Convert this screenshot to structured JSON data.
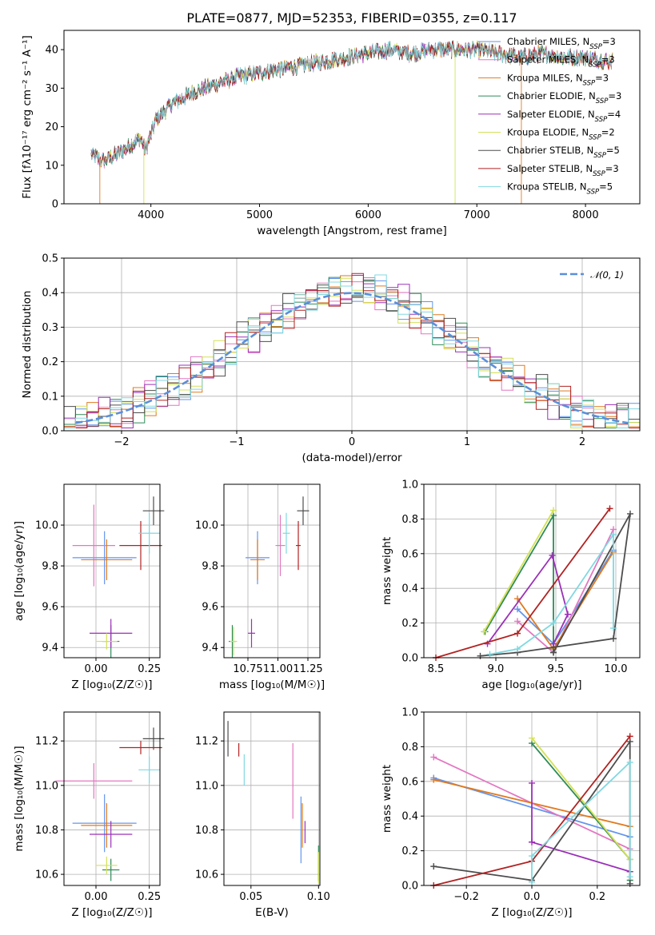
{
  "figure": {
    "title": "PLATE=0877, MJD=52353, FIBERID=0355, z=0.117"
  },
  "chart_data": [
    {
      "id": "spectrum",
      "type": "line",
      "xlabel": "wavelength [Angstrom, rest frame]",
      "ylabel": "Flux [fλ10⁻¹⁷ erg cm⁻² s⁻¹ A⁻¹]",
      "xlim": [
        3200,
        8500
      ],
      "ylim": [
        0,
        45
      ],
      "xticks": [
        4000,
        5000,
        6000,
        7000,
        8000
      ],
      "yticks": [
        0,
        10,
        20,
        30,
        40
      ],
      "grid": false,
      "legend": "top-right",
      "continuum_x": [
        3450,
        3550,
        3700,
        3800,
        3900,
        3950,
        4050,
        4200,
        4400,
        4600,
        4800,
        5000,
        5200,
        5400,
        5600,
        5800,
        6000,
        6200,
        6400,
        6600,
        6800,
        7000,
        7200,
        7400,
        7600,
        7800,
        8000,
        8200,
        8250
      ],
      "continuum_y": [
        13,
        11,
        13,
        15,
        17,
        14,
        22,
        26,
        29,
        31,
        33,
        34,
        35,
        36,
        37,
        38,
        39,
        40,
        39,
        40,
        40,
        40,
        39,
        38,
        39,
        38,
        38,
        37,
        37
      ],
      "series": [
        {
          "name": "Chabrier MILES, N_SSP=3",
          "color": "#6495ed"
        },
        {
          "name": "Salpeter MILES, N_SSP=3",
          "color": "#e377c2"
        },
        {
          "name": "Kroupa MILES, N_SSP=3",
          "color": "#e07a1f"
        },
        {
          "name": "Chabrier ELODIE, N_SSP=3",
          "color": "#2e8b57"
        },
        {
          "name": "Salpeter ELODIE, N_SSP=4",
          "color": "#9b30b8"
        },
        {
          "name": "Kroupa ELODIE, N_SSP=2",
          "color": "#d4e157"
        },
        {
          "name": "Chabrier STELIB, N_SSP=5",
          "color": "#4d4d4d"
        },
        {
          "name": "Salpeter STELIB, N_SSP=3",
          "color": "#b22222"
        },
        {
          "name": "Kroupa STELIB, N_SSP=5",
          "color": "#80d8e0"
        }
      ],
      "legend_labels": [
        {
          "base": "Chabrier MILES, N",
          "sub": "SSP",
          "tail": "=3"
        },
        {
          "base": "Salpeter MILES, N",
          "sub": "SSP",
          "tail": "=3"
        },
        {
          "base": "Kroupa MILES, N",
          "sub": "SSP",
          "tail": "=3"
        },
        {
          "base": "Chabrier ELODIE, N",
          "sub": "SSP",
          "tail": "=3"
        },
        {
          "base": "Salpeter ELODIE, N",
          "sub": "SSP",
          "tail": "=4"
        },
        {
          "base": "Kroupa ELODIE, N",
          "sub": "SSP",
          "tail": "=2"
        },
        {
          "base": "Chabrier STELIB, N",
          "sub": "SSP",
          "tail": "=5"
        },
        {
          "base": "Salpeter STELIB, N",
          "sub": "SSP",
          "tail": "=3"
        },
        {
          "base": "Kroupa STELIB, N",
          "sub": "SSP",
          "tail": "=5"
        }
      ]
    },
    {
      "id": "residuals",
      "type": "line",
      "xlabel": "(data-model)/error",
      "ylabel": "Normed distribution",
      "xlim": [
        -2.5,
        2.5
      ],
      "ylim": [
        0,
        0.5
      ],
      "xticks": [
        -2,
        -1,
        0,
        1,
        2
      ],
      "xticklabels": [
        "−2",
        "−1",
        "0",
        "1",
        "2"
      ],
      "yticks": [
        0,
        0.1,
        0.2,
        0.3,
        0.4,
        0.5
      ],
      "yticklabels": [
        "0.0",
        "0.1",
        "0.2",
        "0.3",
        "0.4",
        "0.5"
      ],
      "grid": true,
      "legend": "top-right",
      "legend_label": "𝒩(0, 1)",
      "gaussian_color": "#5b8fd9",
      "bin_width": 0.1,
      "bin_start": -2.5,
      "histogram_colors": [
        "#6495ed",
        "#e377c2",
        "#e07a1f",
        "#2e8b57",
        "#9b30b8",
        "#d4e157",
        "#4d4d4d",
        "#b22222",
        "#80d8e0"
      ]
    },
    {
      "id": "age-vs-metallicity",
      "type": "scatter",
      "xlabel": "Z [log₁₀(Z/Z☉)]",
      "ylabel": "age  [log₁₀(age/yr)]",
      "xlim": [
        -0.15,
        0.3
      ],
      "ylim": [
        9.35,
        10.2
      ],
      "xticks": [
        0.0,
        0.25
      ],
      "xticklabels": [
        "0.00",
        "0.25"
      ],
      "yticks": [
        9.4,
        9.6,
        9.8,
        10.0
      ],
      "yticklabels": [
        "9.4",
        "9.6",
        "9.8",
        "10.0"
      ],
      "grid": true,
      "points": [
        {
          "x": 0.04,
          "y": 9.84,
          "xerr": 0.15,
          "yerr": 0.13,
          "color": "#6495ed"
        },
        {
          "x": -0.01,
          "y": 9.9,
          "xerr": 0.1,
          "yerr": 0.2,
          "color": "#e377c2"
        },
        {
          "x": 0.05,
          "y": 9.83,
          "xerr": 0.12,
          "yerr": 0.1,
          "color": "#e07a1f"
        },
        {
          "x": 0.07,
          "y": 9.43,
          "xerr": 0.04,
          "yerr": 0.08,
          "color": "#2e8b57"
        },
        {
          "x": 0.07,
          "y": 9.47,
          "xerr": 0.1,
          "yerr": 0.07,
          "color": "#9b30b8"
        },
        {
          "x": 0.05,
          "y": 9.43,
          "xerr": 0.05,
          "yerr": 0.04,
          "color": "#d4e157"
        },
        {
          "x": 0.27,
          "y": 10.07,
          "xerr": 0.05,
          "yerr": 0.07,
          "color": "#4d4d4d"
        },
        {
          "x": 0.21,
          "y": 9.9,
          "xerr": 0.1,
          "yerr": 0.12,
          "color": "#b22222"
        },
        {
          "x": 0.25,
          "y": 9.96,
          "xerr": 0.05,
          "yerr": 0.1,
          "color": "#80d8e0"
        }
      ]
    },
    {
      "id": "age-vs-mass",
      "type": "scatter",
      "xlabel": "mass [log₁₀(M/M☉)]",
      "ylabel": "",
      "xlim": [
        10.55,
        11.35
      ],
      "ylim": [
        9.35,
        10.2
      ],
      "xticks": [
        10.75,
        11.0,
        11.25
      ],
      "xticklabels": [
        "10.75",
        "11.00",
        "11.25"
      ],
      "yticks": [
        9.4,
        9.6,
        9.8,
        10.0
      ],
      "yticklabels": [
        "9.4",
        "9.6",
        "9.8",
        "10.0"
      ],
      "grid": true,
      "points": [
        {
          "x": 10.83,
          "y": 9.84,
          "xerr": 0.1,
          "yerr": 0.13,
          "color": "#6495ed"
        },
        {
          "x": 11.02,
          "y": 9.9,
          "xerr": 0.04,
          "yerr": 0.15,
          "color": "#e377c2"
        },
        {
          "x": 10.83,
          "y": 9.83,
          "xerr": 0.06,
          "yerr": 0.1,
          "color": "#e07a1f"
        },
        {
          "x": 10.62,
          "y": 9.43,
          "xerr": 0.03,
          "yerr": 0.08,
          "color": "#2e8b57"
        },
        {
          "x": 10.78,
          "y": 9.47,
          "xerr": 0.03,
          "yerr": 0.07,
          "color": "#9b30b8"
        },
        {
          "x": 10.63,
          "y": 9.43,
          "xerr": 0.03,
          "yerr": 0.07,
          "color": "#d4e157"
        },
        {
          "x": 11.21,
          "y": 10.07,
          "xerr": 0.05,
          "yerr": 0.07,
          "color": "#4d4d4d"
        },
        {
          "x": 11.17,
          "y": 9.9,
          "xerr": 0.02,
          "yerr": 0.12,
          "color": "#b22222"
        },
        {
          "x": 11.07,
          "y": 9.96,
          "xerr": 0.03,
          "yerr": 0.1,
          "color": "#80d8e0"
        }
      ]
    },
    {
      "id": "weight-vs-age",
      "type": "line",
      "xlabel": "age  [log₁₀(age/yr)]",
      "ylabel": "mass weight",
      "xlim": [
        8.4,
        10.2
      ],
      "ylim": [
        0,
        1
      ],
      "xticks": [
        8.5,
        9.0,
        9.5,
        10.0
      ],
      "xticklabels": [
        "8.5",
        "9.0",
        "9.5",
        "10.0"
      ],
      "yticks": [
        0,
        0.2,
        0.4,
        0.6,
        0.8,
        1.0
      ],
      "yticklabels": [
        "0.0",
        "0.2",
        "0.4",
        "0.6",
        "0.8",
        "1.0"
      ],
      "grid": true,
      "series": [
        {
          "color": "#6495ed",
          "x": [
            9.18,
            9.48,
            9.98
          ],
          "y": [
            0.28,
            0.08,
            0.62
          ]
        },
        {
          "color": "#e377c2",
          "x": [
            9.18,
            9.48,
            9.98
          ],
          "y": [
            0.21,
            0.03,
            0.74
          ]
        },
        {
          "color": "#e07a1f",
          "x": [
            9.18,
            9.48,
            9.98
          ],
          "y": [
            0.34,
            0.05,
            0.61
          ]
        },
        {
          "color": "#2e8b57",
          "x": [
            8.91,
            9.48,
            9.48
          ],
          "y": [
            0.15,
            0.82,
            0.03
          ]
        },
        {
          "color": "#9b30b8",
          "x": [
            8.93,
            9.47,
            9.6,
            9.48
          ],
          "y": [
            0.08,
            0.59,
            0.25,
            0.08
          ]
        },
        {
          "color": "#d4e157",
          "x": [
            8.9,
            9.48
          ],
          "y": [
            0.15,
            0.85
          ]
        },
        {
          "color": "#4d4d4d",
          "x": [
            8.87,
            9.18,
            9.98,
            10.12,
            9.48
          ],
          "y": [
            0.01,
            0.03,
            0.11,
            0.83,
            0.03
          ]
        },
        {
          "color": "#b22222",
          "x": [
            8.5,
            9.18,
            9.95
          ],
          "y": [
            0.0,
            0.14,
            0.86
          ]
        },
        {
          "color": "#80d8e0",
          "x": [
            8.95,
            9.18,
            9.48,
            9.98,
            9.98
          ],
          "y": [
            0.02,
            0.05,
            0.2,
            0.71,
            0.17
          ]
        }
      ]
    },
    {
      "id": "mass-vs-metallicity",
      "type": "scatter",
      "xlabel": "Z [log₁₀(Z/Z☉)]",
      "ylabel": "mass [log₁₀(M/M☉)]",
      "xlim": [
        -0.15,
        0.3
      ],
      "ylim": [
        10.55,
        11.33
      ],
      "xticks": [
        0.0,
        0.25
      ],
      "xticklabels": [
        "0.00",
        "0.25"
      ],
      "yticks": [
        10.6,
        10.8,
        11.0,
        11.2
      ],
      "yticklabels": [
        "10.6",
        "10.8",
        "11.0",
        "11.2"
      ],
      "grid": true,
      "points": [
        {
          "x": 0.04,
          "y": 10.83,
          "xerr": 0.15,
          "yerr": 0.13,
          "color": "#6495ed"
        },
        {
          "x": -0.01,
          "y": 11.02,
          "xerr": 0.18,
          "yerr": 0.08,
          "color": "#e377c2"
        },
        {
          "x": 0.05,
          "y": 10.82,
          "xerr": 0.12,
          "yerr": 0.1,
          "color": "#e07a1f"
        },
        {
          "x": 0.07,
          "y": 10.62,
          "xerr": 0.04,
          "yerr": 0.05,
          "color": "#2e8b57"
        },
        {
          "x": 0.07,
          "y": 10.78,
          "xerr": 0.1,
          "yerr": 0.06,
          "color": "#9b30b8"
        },
        {
          "x": 0.05,
          "y": 10.64,
          "xerr": 0.05,
          "yerr": 0.04,
          "color": "#d4e157"
        },
        {
          "x": 0.27,
          "y": 11.21,
          "xerr": 0.05,
          "yerr": 0.05,
          "color": "#4d4d4d"
        },
        {
          "x": 0.21,
          "y": 11.17,
          "xerr": 0.1,
          "yerr": 0.03,
          "color": "#b22222"
        },
        {
          "x": 0.25,
          "y": 11.07,
          "xerr": 0.05,
          "yerr": 0.06,
          "color": "#80d8e0"
        }
      ]
    },
    {
      "id": "mass-vs-ebv",
      "type": "scatter",
      "xlabel": "E(B-V)",
      "ylabel": "",
      "xlim": [
        0.03,
        0.101
      ],
      "ylim": [
        10.55,
        11.33
      ],
      "xticks": [
        0.05,
        0.1
      ],
      "xticklabels": [
        "0.05",
        "0.10"
      ],
      "yticks": [
        10.6,
        10.8,
        11.0,
        11.2
      ],
      "yticklabels": [
        "10.6",
        "10.8",
        "11.0",
        "11.2"
      ],
      "grid": true,
      "points": [
        {
          "x": 0.087,
          "y": 10.8,
          "xerr": 0,
          "yerr": 0.15,
          "color": "#6495ed"
        },
        {
          "x": 0.081,
          "y": 11.02,
          "xerr": 0,
          "yerr": 0.17,
          "color": "#e377c2"
        },
        {
          "x": 0.088,
          "y": 10.82,
          "xerr": 0,
          "yerr": 0.1,
          "color": "#e07a1f"
        },
        {
          "x": 0.1,
          "y": 10.65,
          "xerr": 0,
          "yerr": 0.08,
          "color": "#2e8b57"
        },
        {
          "x": 0.09,
          "y": 10.79,
          "xerr": 0,
          "yerr": 0.05,
          "color": "#9b30b8"
        },
        {
          "x": 0.1,
          "y": 10.63,
          "xerr": 0,
          "yerr": 0.07,
          "color": "#d4e157"
        },
        {
          "x": 0.033,
          "y": 11.21,
          "xerr": 0,
          "yerr": 0.08,
          "color": "#4d4d4d"
        },
        {
          "x": 0.041,
          "y": 11.16,
          "xerr": 0,
          "yerr": 0.03,
          "color": "#b22222"
        },
        {
          "x": 0.045,
          "y": 11.07,
          "xerr": 0,
          "yerr": 0.07,
          "color": "#80d8e0"
        }
      ]
    },
    {
      "id": "weight-vs-metallicity",
      "type": "line",
      "xlabel": "Z [log₁₀(Z/Z☉)]",
      "ylabel": "mass weight",
      "xlim": [
        -0.33,
        0.33
      ],
      "ylim": [
        0,
        1
      ],
      "xticks": [
        -0.2,
        0.0,
        0.2
      ],
      "xticklabels": [
        "−0.2",
        "0.0",
        "0.2"
      ],
      "yticks": [
        0,
        0.2,
        0.4,
        0.6,
        0.8,
        1.0
      ],
      "yticklabels": [
        "0.0",
        "0.2",
        "0.4",
        "0.6",
        "0.8",
        "1.0"
      ],
      "grid": true,
      "series": [
        {
          "color": "#6495ed",
          "x": [
            -0.3,
            0.3
          ],
          "y": [
            0.62,
            0.28
          ]
        },
        {
          "color": "#e377c2",
          "x": [
            -0.3,
            0.3
          ],
          "y": [
            0.74,
            0.21
          ]
        },
        {
          "color": "#e07a1f",
          "x": [
            -0.3,
            0.3
          ],
          "y": [
            0.61,
            0.34
          ]
        },
        {
          "color": "#2e8b57",
          "x": [
            0.0,
            0.3,
            0.3
          ],
          "y": [
            0.82,
            0.15,
            0.03
          ]
        },
        {
          "color": "#9b30b8",
          "x": [
            0.0,
            0.0,
            0.3,
            0.3
          ],
          "y": [
            0.59,
            0.25,
            0.08,
            0.08
          ]
        },
        {
          "color": "#d4e157",
          "x": [
            0.0,
            0.3
          ],
          "y": [
            0.85,
            0.15
          ]
        },
        {
          "color": "#4d4d4d",
          "x": [
            -0.3,
            0.0,
            0.3,
            0.3
          ],
          "y": [
            0.11,
            0.03,
            0.83,
            0.01
          ]
        },
        {
          "color": "#b22222",
          "x": [
            -0.3,
            0.0,
            0.3
          ],
          "y": [
            0.0,
            0.14,
            0.86
          ]
        },
        {
          "color": "#80d8e0",
          "x": [
            0.0,
            0.0,
            0.3,
            0.3
          ],
          "y": [
            0.02,
            0.17,
            0.71,
            0.05
          ]
        }
      ]
    }
  ]
}
